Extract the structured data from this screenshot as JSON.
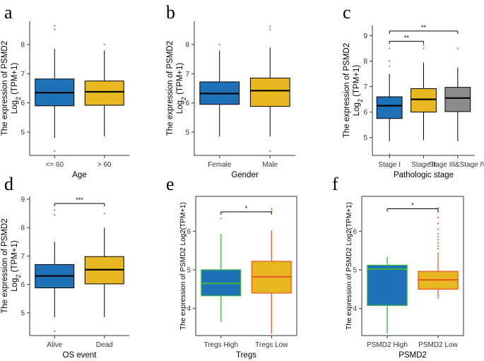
{
  "chart_data": [
    {
      "type": "box",
      "letter": "a",
      "ylabel": "The expression of PSMD2",
      "ylabel2": "Log2 (TPM+1)",
      "xlabel": "Age",
      "categories": [
        "<= 60",
        "> 60"
      ],
      "ylim": [
        4.2,
        8.8
      ],
      "yticks": [
        5,
        6,
        7,
        8
      ],
      "boxes": [
        {
          "min": 4.8,
          "q1": 5.9,
          "median": 6.35,
          "q3": 6.82,
          "max": 7.85,
          "outliers": [
            8.52,
            8.64,
            4.35
          ],
          "fill": "#1f72b8",
          "color": "#000000"
        },
        {
          "min": 4.85,
          "q1": 5.92,
          "median": 6.38,
          "q3": 6.75,
          "max": 7.8,
          "outliers": [
            8.0
          ],
          "fill": "#e8b823",
          "color": "#000000"
        }
      ],
      "significance": []
    },
    {
      "type": "box",
      "letter": "b",
      "ylabel": "The expression of PSMD2",
      "ylabel2": "Log2 (TPM+1)",
      "xlabel": "Gender",
      "categories": [
        "Female",
        "Male"
      ],
      "ylim": [
        4.2,
        8.8
      ],
      "yticks": [
        5,
        6,
        7,
        8
      ],
      "boxes": [
        {
          "min": 4.85,
          "q1": 5.95,
          "median": 6.32,
          "q3": 6.72,
          "max": 7.8,
          "outliers": [
            8.0
          ],
          "fill": "#1f72b8",
          "color": "#000000"
        },
        {
          "min": 4.85,
          "q1": 5.88,
          "median": 6.42,
          "q3": 6.85,
          "max": 7.9,
          "outliers": [
            8.52,
            8.62,
            4.35
          ],
          "fill": "#e8b823",
          "color": "#000000"
        }
      ],
      "significance": []
    },
    {
      "type": "box",
      "letter": "c",
      "ylabel": "The expression of PSMD2",
      "ylabel2": "Log2 (TPM+1)",
      "xlabel": "Pathologic stage",
      "categories": [
        "Stage I",
        "Stage II",
        "Stage III&Stage IV"
      ],
      "ylim": [
        4.3,
        9.4
      ],
      "yticks": [
        5,
        6,
        7,
        8,
        9
      ],
      "boxes": [
        {
          "min": 4.85,
          "q1": 5.75,
          "median": 6.25,
          "q3": 6.6,
          "max": 7.5,
          "outliers": [
            8.5,
            8.0,
            7.8,
            4.35
          ],
          "fill": "#1f72b8",
          "color": "#000000"
        },
        {
          "min": 4.9,
          "q1": 6.0,
          "median": 6.5,
          "q3": 6.92,
          "max": 7.95,
          "outliers": [
            8.5,
            8.62
          ],
          "fill": "#e8b823",
          "color": "#000000"
        },
        {
          "min": 4.85,
          "q1": 6.02,
          "median": 6.55,
          "q3": 6.97,
          "max": 7.75,
          "outliers": [
            8.5
          ],
          "fill": "#8c8c8c",
          "color": "#000000"
        }
      ],
      "significance": [
        {
          "from": 0,
          "to": 1,
          "y": 8.78,
          "label": "**"
        },
        {
          "from": 0,
          "to": 2,
          "y": 9.18,
          "label": "**"
        }
      ]
    },
    {
      "type": "box",
      "letter": "d",
      "ylabel": "The expression of PSMD2",
      "ylabel2": "Log2 (TPM+1)",
      "xlabel": "OS event",
      "categories": [
        "Alive",
        "Dead"
      ],
      "ylim": [
        4.2,
        9.1
      ],
      "yticks": [
        5,
        6,
        7,
        8,
        9
      ],
      "boxes": [
        {
          "min": 4.85,
          "q1": 5.88,
          "median": 6.3,
          "q3": 6.7,
          "max": 7.5,
          "outliers": [
            8.45,
            8.62,
            4.35
          ],
          "fill": "#1f72b8",
          "color": "#000000"
        },
        {
          "min": 4.85,
          "q1": 6.02,
          "median": 6.52,
          "q3": 6.98,
          "max": 8.0,
          "outliers": [
            8.5
          ],
          "fill": "#e8b823",
          "color": "#000000"
        }
      ],
      "significance": [
        {
          "from": 0,
          "to": 1,
          "y": 8.85,
          "label": "***"
        }
      ]
    },
    {
      "type": "box",
      "letter": "e",
      "ylabel": "The expression of PSMD2 Log2(TPM+1)",
      "ylabel2": "",
      "xlabel": "Tregs",
      "categories": [
        "Tregs High",
        "Tregs Low"
      ],
      "ylim": [
        3.3,
        6.9
      ],
      "yticks": [
        4,
        5,
        6
      ],
      "boxes": [
        {
          "min": 3.65,
          "q1": 4.33,
          "median": 4.65,
          "q3": 5.0,
          "max": 5.93,
          "outliers": [
            6.33
          ],
          "fill": "#1f72b8",
          "color": "#3fae49"
        },
        {
          "min": 3.35,
          "q1": 4.4,
          "median": 4.82,
          "q3": 5.22,
          "max": 6.02,
          "outliers": [
            6.52,
            6.58
          ],
          "fill": "#e8b823",
          "color": "#ea5a1c"
        }
      ],
      "significance": [
        {
          "from": 0,
          "to": 1,
          "y": 6.5,
          "label": "*"
        }
      ]
    },
    {
      "type": "box",
      "letter": "f",
      "ylabel": "The expression of PSMD2 Log2(TPM+1)",
      "ylabel2": "",
      "xlabel": "PSMD2",
      "categories": [
        "PSMD2 High",
        "PSMD2 Low"
      ],
      "ylim": [
        3.3,
        6.9
      ],
      "yticks": [
        4,
        5,
        6
      ],
      "boxes": [
        {
          "min": 3.35,
          "q1": 4.08,
          "median": 5.02,
          "q3": 5.12,
          "max": 5.33,
          "outliers": [],
          "fill": "#1f72b8",
          "color": "#3fae49"
        },
        {
          "min": 4.25,
          "q1": 4.5,
          "median": 4.74,
          "q3": 4.96,
          "max": 5.45,
          "outliers": [
            5.55,
            5.62,
            5.7,
            5.78,
            5.85,
            5.93,
            6.05,
            6.2,
            6.35,
            6.5,
            6.6
          ],
          "fill": "#e8b823",
          "color": "#ea5a1c"
        }
      ],
      "significance": [
        {
          "from": 0,
          "to": 1,
          "y": 6.58,
          "label": "*"
        }
      ]
    }
  ]
}
